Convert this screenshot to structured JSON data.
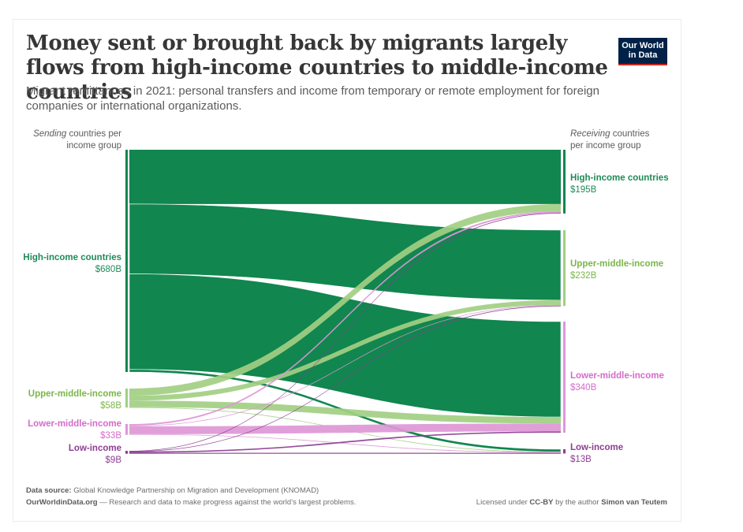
{
  "header": {
    "title": "Money sent or brought back by migrants largely flows from high-income countries to middle-income countries",
    "subtitle": "Migrant remittances in 2021: personal transfers and income from temporary or remote employment for foreign companies or international organizations.",
    "logo_line1": "Our World",
    "logo_line2": "in Data"
  },
  "axis_heads": {
    "left_italic": "Sending",
    "left_rest": " countries per income group",
    "right_italic": "Receiving",
    "right_rest": " countries per income group"
  },
  "colors": {
    "high": "#11864f",
    "upper_middle": "#a2cf83",
    "lower_middle": "#de97d7",
    "low": "#8d3d93",
    "high_text": "#1f8a58",
    "upper_middle_text": "#7ab648",
    "lower_middle_text": "#d46cc9",
    "low_text": "#8d3d93"
  },
  "chart_data": {
    "type": "sankey",
    "title": "Money sent or brought back by migrants largely flows from high-income countries to middle-income countries",
    "unit": "billion USD",
    "year": 2021,
    "sources": [
      {
        "id": "high",
        "label": "High-income countries",
        "value_label": "$680B",
        "value": 680
      },
      {
        "id": "upper_middle",
        "label": "Upper-middle-income",
        "value_label": "$58B",
        "value": 58
      },
      {
        "id": "lower_middle",
        "label": "Lower-middle-income",
        "value_label": "$33B",
        "value": 33
      },
      {
        "id": "low",
        "label": "Low-income",
        "value_label": "$9B",
        "value": 9
      }
    ],
    "targets": [
      {
        "id": "high",
        "label": "High-income countries",
        "value_label": "$195B",
        "value": 195
      },
      {
        "id": "upper_middle",
        "label": "Upper-middle-income",
        "value_label": "$232B",
        "value": 232
      },
      {
        "id": "lower_middle",
        "label": "Lower-middle-income",
        "value_label": "$340B",
        "value": 340
      },
      {
        "id": "low",
        "label": "Low-income",
        "value_label": "$13B",
        "value": 13
      }
    ],
    "flows": [
      {
        "from": "high",
        "to": "high",
        "value": 166
      },
      {
        "from": "high",
        "to": "upper_middle",
        "value": 214
      },
      {
        "from": "high",
        "to": "lower_middle",
        "value": 292
      },
      {
        "from": "high",
        "to": "low",
        "value": 8
      },
      {
        "from": "upper_middle",
        "to": "high",
        "value": 22
      },
      {
        "from": "upper_middle",
        "to": "upper_middle",
        "value": 15
      },
      {
        "from": "upper_middle",
        "to": "lower_middle",
        "value": 20
      },
      {
        "from": "upper_middle",
        "to": "low",
        "value": 1
      },
      {
        "from": "lower_middle",
        "to": "high",
        "value": 5
      },
      {
        "from": "lower_middle",
        "to": "upper_middle",
        "value": 2
      },
      {
        "from": "lower_middle",
        "to": "lower_middle",
        "value": 24
      },
      {
        "from": "lower_middle",
        "to": "low",
        "value": 2
      },
      {
        "from": "low",
        "to": "high",
        "value": 1
      },
      {
        "from": "low",
        "to": "upper_middle",
        "value": 1
      },
      {
        "from": "low",
        "to": "lower_middle",
        "value": 4
      },
      {
        "from": "low",
        "to": "low",
        "value": 3
      }
    ]
  },
  "footer": {
    "source_label": "Data source:",
    "source_text": " Global Knowledge Partnership on Migration and Development (KNOMAD)",
    "site": "OurWorldinData.org",
    "tagline": " — Research and data to make progress against the world’s largest problems.",
    "license_pre": "Licensed under ",
    "license": "CC-BY",
    "license_mid": " by the author ",
    "author": "Simon van Teutem"
  }
}
